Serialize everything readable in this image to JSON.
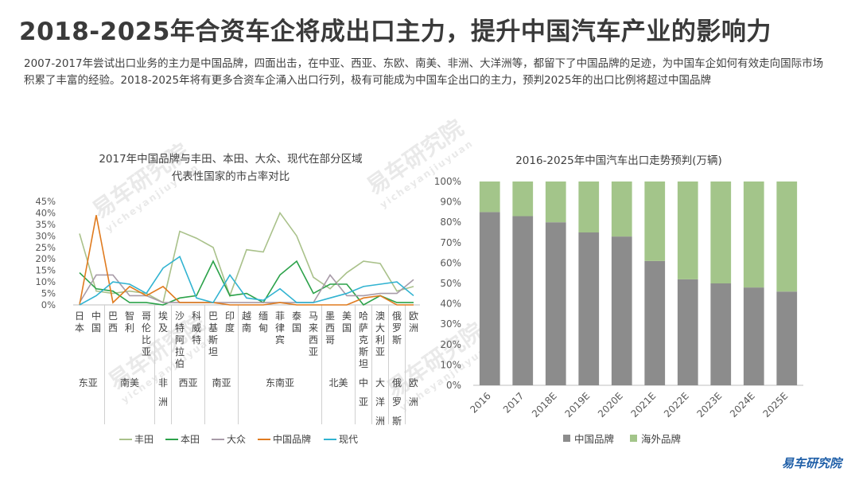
{
  "title": "2018-2025年合资车企将成出口主力，提升中国汽车产业的影响力",
  "description": "2007-2017年尝试出口业务的主力是中国品牌，四面出击，在中亚、西亚、东欧、南美、非洲、大洋洲等，都留下了中国品牌的足迹，为中国车企如何有效走向国际市场积累了丰富的经验。2018-2025年将有更多合资车企涌入出口行列，极有可能成为中国车企出口的主力，预判2025年的出口比例将超过中国品牌",
  "watermark": {
    "brand": "易车研究院",
    "sub": "yicheyanjiuyuan"
  },
  "logo": "易车研究院",
  "chart_data": [
    {
      "type": "line",
      "title_line1": "2017年中国品牌与丰田、本田、大众、现代在部分区域",
      "title_line2": "代表性国家的市占率对比",
      "ylim": [
        0,
        45
      ],
      "yticks": [
        "0%",
        "5%",
        "10%",
        "15%",
        "20%",
        "25%",
        "30%",
        "35%",
        "40%",
        "45%"
      ],
      "categories": [
        "日本",
        "中国",
        "巴西",
        "智利",
        "哥伦比亚",
        "埃及",
        "沙特阿拉伯",
        "科威特",
        "巴基斯坦",
        "印度",
        "越南",
        "缅甸",
        "菲律宾",
        "泰国",
        "马来西亚",
        "墨西哥",
        "美国",
        "哈萨克斯坦",
        "澳大利亚",
        "俄罗斯",
        "欧洲"
      ],
      "regions": [
        {
          "label": "东亚",
          "start": 0,
          "end": 1
        },
        {
          "label": "南美",
          "start": 2,
          "end": 4
        },
        {
          "label": "非洲",
          "start": 5,
          "end": 5
        },
        {
          "label": "西亚",
          "start": 6,
          "end": 7
        },
        {
          "label": "南亚",
          "start": 8,
          "end": 9
        },
        {
          "label": "东南亚",
          "start": 10,
          "end": 14
        },
        {
          "label": "北美",
          "start": 15,
          "end": 16
        },
        {
          "label": "中亚",
          "start": 17,
          "end": 17
        },
        {
          "label": "大洋洲",
          "start": 18,
          "end": 18
        },
        {
          "label": "俄罗斯",
          "start": 19,
          "end": 19
        },
        {
          "label": "欧洲",
          "start": 20,
          "end": 20
        }
      ],
      "series": [
        {
          "name": "丰田",
          "color": "#a9c18a",
          "values": [
            31,
            6,
            5,
            6,
            5,
            1,
            32,
            29,
            25,
            4,
            24,
            23,
            40,
            30,
            12,
            7,
            14,
            19,
            18,
            6,
            8
          ]
        },
        {
          "name": "本田",
          "color": "#2ca24a",
          "values": [
            14,
            7,
            6,
            1,
            1,
            0,
            3,
            4,
            19,
            4,
            5,
            1,
            13,
            19,
            5,
            9,
            9,
            0,
            4,
            1,
            1
          ]
        },
        {
          "name": "大众",
          "color": "#a89ba8",
          "values": [
            1,
            13,
            13,
            4,
            4,
            1,
            1,
            1,
            1,
            1,
            1,
            1,
            1,
            1,
            1,
            13,
            4,
            4,
            5,
            5,
            11
          ]
        },
        {
          "name": "中国品牌",
          "color": "#e07b1f",
          "values": [
            0,
            39,
            1,
            8,
            4,
            8,
            1,
            1,
            1,
            0,
            0,
            0,
            1,
            0,
            0,
            0,
            0,
            3,
            4,
            0,
            0
          ]
        },
        {
          "name": "现代",
          "color": "#31b3d1",
          "values": [
            0,
            4,
            10,
            9,
            5,
            16,
            21,
            3,
            1,
            13,
            3,
            2,
            7,
            1,
            1,
            3,
            5,
            8,
            9,
            10,
            4
          ]
        }
      ]
    },
    {
      "type": "bar",
      "stacked": true,
      "title": "2016-2025年中国汽车出口走势预判(万辆)",
      "ylim": [
        0,
        100
      ],
      "yticks": [
        "0%",
        "10%",
        "20%",
        "30%",
        "40%",
        "50%",
        "60%",
        "70%",
        "80%",
        "90%",
        "100%"
      ],
      "categories": [
        "2016",
        "2017",
        "2018E",
        "2019E",
        "2020E",
        "2021E",
        "2022E",
        "2023E",
        "2024E",
        "2025E"
      ],
      "series": [
        {
          "name": "中国品牌",
          "color": "#8c8c8c",
          "values": [
            85,
            83,
            80,
            75,
            73,
            61,
            52,
            50,
            48,
            46
          ]
        },
        {
          "name": "海外品牌",
          "color": "#a3c58a",
          "values": [
            15,
            17,
            20,
            25,
            27,
            39,
            48,
            50,
            52,
            54
          ]
        }
      ]
    }
  ]
}
